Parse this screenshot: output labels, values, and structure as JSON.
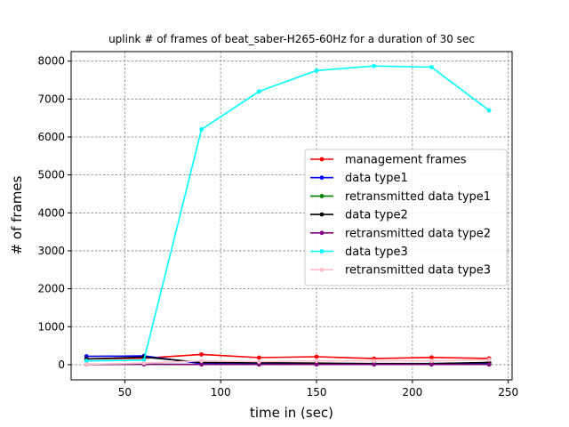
{
  "chart_data": {
    "type": "line",
    "title": "uplink # of frames of beat_saber-H265-60Hz for a duration of 30 sec",
    "xlabel": "time in (sec)",
    "ylabel": "# of frames",
    "xlim": [
      22,
      252
    ],
    "ylim": [
      -400,
      8250
    ],
    "xticks": [
      50,
      100,
      150,
      200,
      250
    ],
    "yticks": [
      0,
      1000,
      2000,
      3000,
      4000,
      5000,
      6000,
      7000,
      8000
    ],
    "grid": true,
    "legend_position": "center-right",
    "x": [
      30,
      60,
      90,
      120,
      150,
      180,
      210,
      240
    ],
    "series": [
      {
        "name": "management frames",
        "color": "#ff0000",
        "values": [
          150,
          170,
          270,
          185,
          210,
          160,
          190,
          165
        ]
      },
      {
        "name": "data type1",
        "color": "#0000ff",
        "values": [
          220,
          230,
          30,
          20,
          30,
          25,
          20,
          40
        ]
      },
      {
        "name": "retransmitted data type1",
        "color": "#008000",
        "values": [
          5,
          10,
          5,
          5,
          5,
          5,
          5,
          5
        ]
      },
      {
        "name": "data type2",
        "color": "#000000",
        "values": [
          150,
          200,
          60,
          50,
          40,
          30,
          30,
          60
        ]
      },
      {
        "name": "retransmitted data type2",
        "color": "#800080",
        "values": [
          5,
          10,
          5,
          5,
          5,
          5,
          5,
          5
        ]
      },
      {
        "name": "data type3",
        "color": "#00ffff",
        "values": [
          100,
          120,
          6200,
          7200,
          7750,
          7870,
          7840,
          6700
        ]
      },
      {
        "name": "retransmitted data type3",
        "color": "#ffc0cb",
        "values": [
          10,
          40,
          100,
          80,
          100,
          100,
          100,
          130
        ]
      }
    ]
  }
}
